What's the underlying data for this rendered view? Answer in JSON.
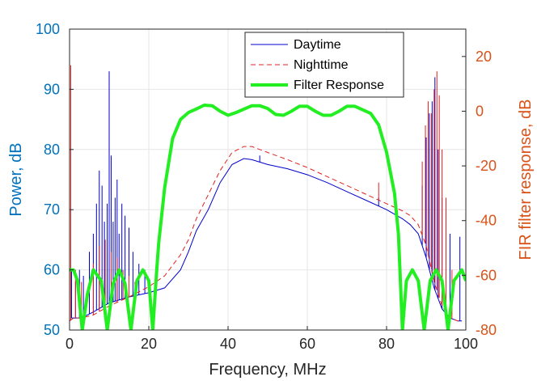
{
  "chart_data": {
    "type": "line",
    "title": "",
    "xlabel": "Frequency, MHz",
    "ylabel_left": "Power, dB",
    "ylabel_right": "FIR filter response, dB",
    "xlim": [
      0,
      100
    ],
    "ylim_left": [
      50,
      100
    ],
    "ylim_right": [
      -80,
      30
    ],
    "grid": true,
    "legend_position": "top-center",
    "x_ticks": [
      "0",
      "20",
      "40",
      "60",
      "80",
      "100"
    ],
    "y_left_ticks": [
      "50",
      "60",
      "70",
      "80",
      "90",
      "100"
    ],
    "y_right_ticks": [
      "-80",
      "-60",
      "-40",
      "-20",
      "0",
      "20"
    ],
    "colors": {
      "left_axis": "#0072BD",
      "right_axis": "#D95319",
      "daytime": "#0000CC",
      "nighttime": "#E02020",
      "filter": "#22EE22"
    },
    "series": [
      {
        "name": "Daytime",
        "axis": "left",
        "style": "solid",
        "x": [
          0.5,
          1,
          3,
          6,
          10,
          15,
          20,
          24,
          28,
          30,
          32,
          35,
          38,
          41,
          44,
          46,
          50,
          55,
          60,
          65,
          70,
          75,
          80,
          84,
          86,
          88,
          90,
          92,
          94,
          96,
          98,
          99
        ],
        "y": [
          52,
          52,
          52,
          53,
          54.5,
          55.5,
          56.2,
          57,
          60,
          63,
          66.5,
          70,
          74.5,
          77.5,
          78.5,
          78.3,
          77.5,
          76.8,
          75.8,
          74.5,
          73,
          71.5,
          70,
          68.5,
          67.5,
          66,
          62,
          57,
          53.5,
          52,
          51.5,
          51.5
        ],
        "spikes": [
          {
            "x": 0.5,
            "y": 60
          },
          {
            "x": 1.5,
            "y": 58
          },
          {
            "x": 2.5,
            "y": 60
          },
          {
            "x": 3.5,
            "y": 59
          },
          {
            "x": 5,
            "y": 63
          },
          {
            "x": 6,
            "y": 66
          },
          {
            "x": 6.8,
            "y": 71
          },
          {
            "x": 7.5,
            "y": 76.5
          },
          {
            "x": 8.2,
            "y": 74
          },
          {
            "x": 8.8,
            "y": 68
          },
          {
            "x": 9.5,
            "y": 71
          },
          {
            "x": 10,
            "y": 93
          },
          {
            "x": 10.5,
            "y": 79
          },
          {
            "x": 11,
            "y": 68
          },
          {
            "x": 11.5,
            "y": 72
          },
          {
            "x": 12,
            "y": 75
          },
          {
            "x": 12.5,
            "y": 66
          },
          {
            "x": 13.2,
            "y": 71
          },
          {
            "x": 14,
            "y": 69
          },
          {
            "x": 15,
            "y": 67
          },
          {
            "x": 16,
            "y": 63
          },
          {
            "x": 17.5,
            "y": 61
          },
          {
            "x": 19,
            "y": 60
          },
          {
            "x": 48,
            "y": 79
          },
          {
            "x": 78,
            "y": 72
          },
          {
            "x": 89,
            "y": 74
          },
          {
            "x": 90,
            "y": 82
          },
          {
            "x": 90.8,
            "y": 86
          },
          {
            "x": 91.5,
            "y": 88
          },
          {
            "x": 92.2,
            "y": 92
          },
          {
            "x": 93,
            "y": 80
          },
          {
            "x": 94,
            "y": 72
          },
          {
            "x": 96,
            "y": 66
          },
          {
            "x": 98.5,
            "y": 65.5
          }
        ]
      },
      {
        "name": "Nighttime",
        "axis": "left",
        "style": "dashed",
        "x": [
          0,
          1,
          3,
          6,
          10,
          15,
          20,
          24,
          28,
          30,
          32,
          35,
          38,
          41,
          44,
          46,
          50,
          55,
          60,
          65,
          70,
          75,
          80,
          84,
          86,
          88,
          90,
          92,
          94,
          96,
          98,
          99
        ],
        "y": [
          51.5,
          52,
          52,
          52.5,
          54,
          55.5,
          57.2,
          59,
          62.5,
          65,
          68.5,
          72.5,
          76.5,
          79.5,
          80.5,
          80.5,
          79.5,
          78.3,
          77,
          75.5,
          74,
          72.5,
          71,
          69.8,
          69,
          67.5,
          64,
          58,
          54,
          52,
          51.5,
          51.5
        ],
        "spikes": [
          {
            "x": 0.3,
            "y": 94
          },
          {
            "x": 1.5,
            "y": 60
          },
          {
            "x": 3,
            "y": 58
          },
          {
            "x": 6,
            "y": 61
          },
          {
            "x": 7.5,
            "y": 64
          },
          {
            "x": 9,
            "y": 65
          },
          {
            "x": 10.5,
            "y": 63
          },
          {
            "x": 12,
            "y": 62
          },
          {
            "x": 13.5,
            "y": 60
          },
          {
            "x": 15,
            "y": 59
          },
          {
            "x": 16.5,
            "y": 58
          },
          {
            "x": 78,
            "y": 74.5
          },
          {
            "x": 89,
            "y": 78
          },
          {
            "x": 89.8,
            "y": 84
          },
          {
            "x": 90.5,
            "y": 88
          },
          {
            "x": 91.3,
            "y": 86
          },
          {
            "x": 92,
            "y": 90
          },
          {
            "x": 92.7,
            "y": 93
          },
          {
            "x": 93.3,
            "y": 89
          },
          {
            "x": 94,
            "y": 80
          },
          {
            "x": 95,
            "y": 72
          },
          {
            "x": 96.5,
            "y": 60
          }
        ]
      },
      {
        "name": "Filter Response",
        "axis": "right",
        "style": "solid-thick",
        "x": [
          0,
          1,
          2,
          3.2,
          4.5,
          6,
          8,
          9.5,
          11,
          12.5,
          14,
          15.5,
          17,
          18.5,
          20,
          21,
          22,
          22.5,
          24,
          26,
          28,
          30,
          32,
          34,
          36,
          38,
          40,
          42,
          46,
          48,
          50,
          52,
          54,
          56,
          58,
          60,
          62,
          64,
          66,
          68,
          70,
          72,
          74,
          76,
          78,
          80,
          82,
          83,
          84,
          85,
          86.5,
          88,
          89.5,
          91,
          92.5,
          94,
          95.5,
          97,
          99,
          100
        ],
        "y": [
          -58,
          -58,
          -62,
          -80,
          -67,
          -58,
          -62,
          -80,
          -63,
          -58,
          -63,
          -80,
          -62,
          -58,
          -62,
          -80,
          -58,
          -48,
          -28,
          -10,
          -3,
          -0.5,
          0.8,
          2.2,
          2,
          0,
          -1.5,
          -0.5,
          2,
          2,
          1,
          -1.2,
          -1.5,
          0,
          1.8,
          1.8,
          0,
          -1.5,
          -1.5,
          0,
          1.8,
          1.8,
          0.5,
          -0.8,
          -5,
          -15,
          -30,
          -45,
          -80,
          -62,
          -58,
          -62,
          -80,
          -62,
          -58,
          -62,
          -80,
          -62,
          -58,
          -62
        ]
      }
    ]
  }
}
